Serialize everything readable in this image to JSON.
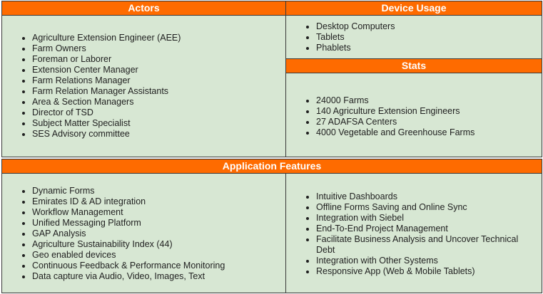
{
  "actors": {
    "title": "Actors",
    "items": [
      "Agriculture Extension Engineer (AEE)",
      "Farm Owners",
      "Foreman or Laborer",
      "Extension Center Manager",
      "Farm Relations Manager",
      "Farm Relation Manager Assistants",
      "Area & Section Managers",
      "Director of TSD",
      "Subject Matter Specialist",
      "SES Advisory committee"
    ]
  },
  "device_usage": {
    "title": "Device Usage",
    "items": [
      "Desktop Computers",
      "Tablets",
      "Phablets"
    ]
  },
  "stats": {
    "title": "Stats",
    "items": [
      "24000 Farms",
      "140 Agriculture Extension Engineers",
      "27 ADAFSA Centers",
      "4000 Vegetable and Greenhouse Farms"
    ]
  },
  "features": {
    "title": "Application Features",
    "left_items": [
      "Dynamic Forms",
      "Emirates ID & AD integration",
      "Workflow Management",
      "Unified Messaging Platform",
      "GAP Analysis",
      "Agriculture Sustainability Index (44)",
      "Geo enabled devices",
      "Continuous Feedback & Performance Monitoring",
      "Data capture via Audio, Video, Images, Text"
    ],
    "right_items": [
      "Intuitive Dashboards",
      "Offline Forms Saving and Online Sync",
      "Integration with Siebel",
      "End-To-End Project Management",
      "Facilitate Business Analysis and Uncover Technical Debt",
      "Integration with Other Systems",
      "Responsive App (Web & Mobile Tablets)"
    ]
  },
  "colors": {
    "header_bg": "#fe6b00",
    "header_text": "#ffffff",
    "panel_bg": "#d7e7d3",
    "border": "#3a3a3a"
  }
}
